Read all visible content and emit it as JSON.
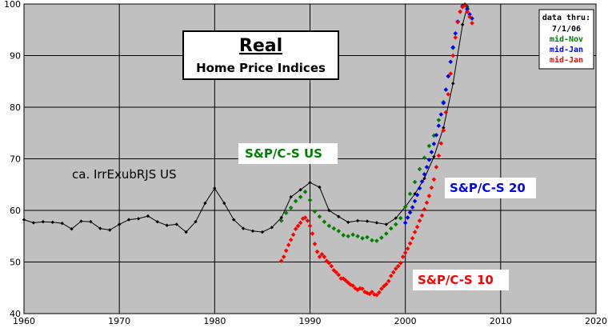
{
  "chart_data": {
    "type": "line",
    "title": "Real",
    "subtitle": "Home Price Indices",
    "xlim": [
      1960,
      2020
    ],
    "ylim": [
      40,
      100
    ],
    "x_ticks": [
      1960,
      1970,
      1980,
      1990,
      2000,
      2010,
      2020
    ],
    "y_ticks": [
      40,
      50,
      60,
      70,
      80,
      90,
      100
    ],
    "grid": true,
    "background": "#c0c0c0",
    "legend": {
      "position": "top-right",
      "entries": [
        {
          "text": "data thru:",
          "color": "#000000"
        },
        {
          "text": "7/1/06",
          "color": "#000000"
        },
        {
          "text": "mid-Nov",
          "color": "#008000"
        },
        {
          "text": "mid-Jan",
          "color": "#0000ff"
        },
        {
          "text": "mid-Jan",
          "color": "#ff0000"
        }
      ]
    },
    "series": [
      {
        "name": "ca. IrrExubRJS US",
        "color": "#000000",
        "style": "line-markers",
        "x": [
          1960,
          1961,
          1962,
          1963,
          1964,
          1965,
          1966,
          1967,
          1968,
          1969,
          1970,
          1971,
          1972,
          1973,
          1974,
          1975,
          1976,
          1977,
          1978,
          1979,
          1980,
          1981,
          1982,
          1983,
          1984,
          1985,
          1986,
          1987,
          1988,
          1989,
          1990,
          1991,
          1992,
          1993,
          1994,
          1995,
          1996,
          1997,
          1998,
          1999,
          2000,
          2001,
          2002,
          2003,
          2004,
          2005,
          2006,
          2006.5
        ],
        "y": [
          58.2,
          57.6,
          57.8,
          57.7,
          57.5,
          56.4,
          57.9,
          57.8,
          56.5,
          56.2,
          57.3,
          58.2,
          58.4,
          58.9,
          57.8,
          57.1,
          57.3,
          55.8,
          57.8,
          61.4,
          64.3,
          61.4,
          58.2,
          56.5,
          56.0,
          55.8,
          56.7,
          58.6,
          62.6,
          64.0,
          65.4,
          64.5,
          60.0,
          58.8,
          57.7,
          58.0,
          57.9,
          57.6,
          57.3,
          58.5,
          60.7,
          63.2,
          66.2,
          70.4,
          76.0,
          84.6,
          96.0,
          99.5
        ]
      },
      {
        "name": "S&P/C-S US",
        "color": "#008000",
        "style": "markers",
        "x": [
          1987.0,
          1987.5,
          1988.0,
          1988.5,
          1989.0,
          1989.5,
          1990.0,
          1990.5,
          1991.0,
          1991.5,
          1992.0,
          1992.5,
          1993.0,
          1993.5,
          1994.0,
          1994.5,
          1995.0,
          1995.5,
          1996.0,
          1996.5,
          1997.0,
          1997.5,
          1998.0,
          1998.5,
          1999.0,
          1999.5,
          2000.0,
          2000.5,
          2001.0,
          2001.5,
          2002.0,
          2002.5,
          2003.0,
          2003.5,
          2004.0,
          2004.5,
          2005.0,
          2005.5,
          2006.0,
          2006.25,
          2006.5
        ],
        "y": [
          58.0,
          59.5,
          60.5,
          61.8,
          62.6,
          63.6,
          62.0,
          59.8,
          58.8,
          57.8,
          57.0,
          56.5,
          56.0,
          55.2,
          55.0,
          55.3,
          55.0,
          54.6,
          54.8,
          54.2,
          54.1,
          54.7,
          55.5,
          56.5,
          57.3,
          58.5,
          60.7,
          63.2,
          65.5,
          68.0,
          70.2,
          72.5,
          74.5,
          77.5,
          81.0,
          86.0,
          91.5,
          96.5,
          99.5,
          99.9,
          99.2
        ]
      },
      {
        "name": "S&P/C-S 20",
        "color": "#0000ff",
        "style": "markers",
        "x": [
          2000.0,
          2000.25,
          2000.5,
          2000.75,
          2001.0,
          2001.25,
          2001.5,
          2001.75,
          2002.0,
          2002.25,
          2002.5,
          2002.75,
          2003.0,
          2003.25,
          2003.5,
          2003.75,
          2004.0,
          2004.25,
          2004.5,
          2004.75,
          2005.0,
          2005.25,
          2005.5,
          2005.75,
          2006.0,
          2006.25,
          2006.5,
          2006.75,
          2007.0
        ],
        "y": [
          57.6,
          58.6,
          59.6,
          60.6,
          61.8,
          63.0,
          64.3,
          65.6,
          67.0,
          68.4,
          69.8,
          71.3,
          72.9,
          74.6,
          76.4,
          78.6,
          80.8,
          83.4,
          86.0,
          88.8,
          91.6,
          94.3,
          96.6,
          98.5,
          99.6,
          99.8,
          99.0,
          98.0,
          97.2
        ]
      },
      {
        "name": "S&P/C-S 10",
        "color": "#ff0000",
        "style": "markers",
        "x": [
          1987.0,
          1987.25,
          1987.5,
          1987.75,
          1988.0,
          1988.25,
          1988.5,
          1988.75,
          1989.0,
          1989.25,
          1989.5,
          1989.75,
          1990.0,
          1990.25,
          1990.5,
          1990.75,
          1991.0,
          1991.25,
          1991.5,
          1991.75,
          1992.0,
          1992.25,
          1992.5,
          1992.75,
          1993.0,
          1993.25,
          1993.5,
          1993.75,
          1994.0,
          1994.25,
          1994.5,
          1994.75,
          1995.0,
          1995.25,
          1995.5,
          1995.75,
          1996.0,
          1996.25,
          1996.5,
          1996.75,
          1997.0,
          1997.25,
          1997.5,
          1997.75,
          1998.0,
          1998.25,
          1998.5,
          1998.75,
          1999.0,
          1999.25,
          1999.5,
          1999.75,
          2000.0,
          2000.25,
          2000.5,
          2000.75,
          2001.0,
          2001.25,
          2001.5,
          2001.75,
          2002.0,
          2002.25,
          2002.5,
          2002.75,
          2003.0,
          2003.25,
          2003.5,
          2003.75,
          2004.0,
          2004.25,
          2004.5,
          2004.75,
          2005.0,
          2005.25,
          2005.5,
          2005.75,
          2006.0,
          2006.25,
          2006.5,
          2006.75,
          2007.0
        ],
        "y": [
          50.2,
          51.0,
          52.2,
          53.3,
          54.3,
          55.3,
          56.4,
          57.0,
          57.6,
          58.4,
          58.6,
          58.0,
          57.0,
          55.5,
          53.5,
          52.0,
          51.0,
          51.5,
          51.0,
          50.2,
          49.8,
          49.2,
          48.4,
          48.0,
          47.5,
          46.8,
          46.8,
          46.4,
          46.0,
          45.6,
          45.4,
          44.9,
          44.6,
          44.9,
          44.8,
          44.2,
          44.0,
          43.8,
          44.2,
          43.7,
          43.6,
          44.1,
          44.8,
          45.3,
          45.7,
          46.3,
          47.3,
          48.0,
          48.7,
          49.2,
          49.8,
          51.0,
          51.8,
          52.6,
          53.6,
          54.6,
          55.8,
          56.8,
          58.0,
          59.0,
          60.2,
          61.5,
          62.8,
          64.4,
          66.0,
          68.4,
          70.6,
          73.0,
          75.5,
          79.0,
          82.5,
          86.5,
          90.0,
          93.5,
          96.5,
          98.5,
          99.4,
          99.8,
          98.5,
          97.5,
          96.3
        ]
      }
    ],
    "annotations": [
      {
        "text": "ca. IrrExubRJS US",
        "color": "#000000",
        "series": 0
      },
      {
        "text": "S&P/C-S US",
        "color": "#008000",
        "series": 1
      },
      {
        "text": "S&P/C-S 20",
        "color": "#0000ff",
        "series": 2
      },
      {
        "text": "S&P/C-S 10",
        "color": "#ff0000",
        "series": 3
      }
    ]
  }
}
